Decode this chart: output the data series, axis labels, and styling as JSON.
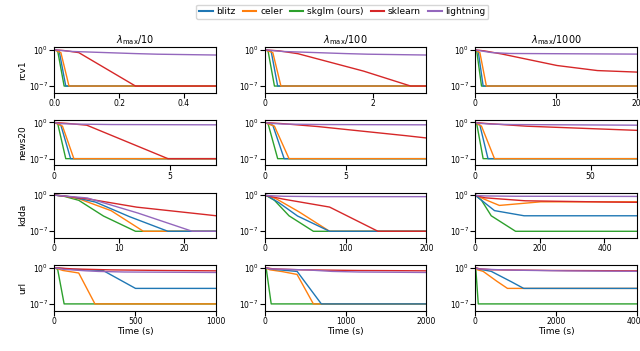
{
  "legend_labels": [
    "blitz",
    "celer",
    "skglm (ours)",
    "sklearn",
    "lightning"
  ],
  "legend_colors": [
    "#1f77b4",
    "#ff7f0e",
    "#2ca02c",
    "#d62728",
    "#9467bd"
  ],
  "row_labels": [
    "rcv1",
    "news20",
    "kdda",
    "url"
  ],
  "col_labels": [
    "$\\lambda_{\\max}/10$",
    "$\\lambda_{\\max}/100$",
    "$\\lambda_{\\max}/1000$"
  ],
  "x_limits": [
    [
      [
        0,
        0.5
      ],
      [
        0,
        3
      ],
      [
        0,
        20
      ]
    ],
    [
      [
        0,
        7
      ],
      [
        0,
        10
      ],
      [
        0,
        70
      ]
    ],
    [
      [
        0,
        25
      ],
      [
        0,
        200
      ],
      [
        0,
        500
      ]
    ],
    [
      [
        0,
        1000
      ],
      [
        0,
        2000
      ],
      [
        0,
        4000
      ]
    ]
  ],
  "x_ticks": [
    [
      [
        0,
        0.2,
        0.4
      ],
      [
        0,
        2
      ],
      [
        0,
        10,
        20
      ]
    ],
    [
      [
        0,
        5
      ],
      [
        0,
        5
      ],
      [
        0,
        50
      ]
    ],
    [
      [
        0,
        10,
        20
      ],
      [
        0,
        100,
        200
      ],
      [
        0,
        200,
        400
      ]
    ],
    [
      [
        0,
        500,
        1000
      ],
      [
        0,
        1000,
        2000
      ],
      [
        0,
        2000,
        4000
      ]
    ]
  ],
  "y_lim": [
    5e-09,
    3
  ],
  "line_width": 1.0
}
